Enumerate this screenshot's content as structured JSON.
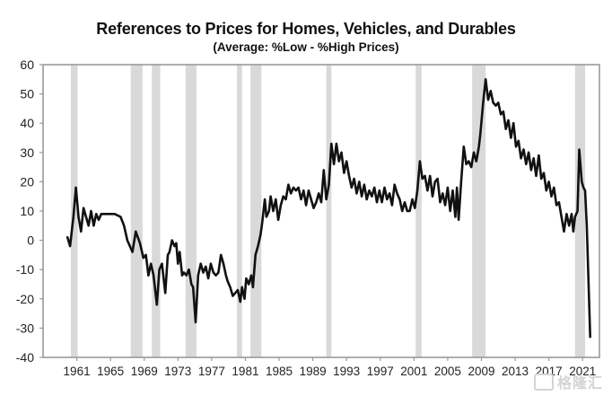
{
  "chart_data": {
    "type": "line",
    "title": "References to Prices for Homes, Vehicles, and Durables",
    "subtitle": "(Average:  %Low - %High Prices)",
    "xlabel": "",
    "ylabel": "",
    "xlim": [
      1957,
      2023
    ],
    "ylim": [
      -40,
      60
    ],
    "yticks": [
      60,
      50,
      40,
      30,
      20,
      10,
      0,
      -10,
      -20,
      -30,
      -40
    ],
    "xticks": [
      1961,
      1965,
      1969,
      1973,
      1977,
      1981,
      1985,
      1989,
      1993,
      1997,
      2001,
      2005,
      2009,
      2013,
      2017,
      2021
    ],
    "grid": false,
    "legend": "none",
    "recession_bands": [
      [
        1960.3,
        1961.1
      ],
      [
        1969.9,
        1970.9
      ],
      [
        1973.9,
        1975.2
      ],
      [
        1980.0,
        1980.6
      ],
      [
        1981.6,
        1982.9
      ],
      [
        1990.6,
        1991.2
      ],
      [
        2001.2,
        2001.9
      ],
      [
        2007.9,
        2009.5
      ],
      [
        2020.1,
        2021.3
      ],
      [
        1967.4,
        1968.8
      ]
    ],
    "series": [
      {
        "name": "%Low - %High Prices",
        "color": "#111111",
        "points": [
          [
            1959.9,
            1
          ],
          [
            1960.2,
            -2
          ],
          [
            1960.6,
            8
          ],
          [
            1960.9,
            18
          ],
          [
            1961.2,
            8
          ],
          [
            1961.5,
            3
          ],
          [
            1961.8,
            11
          ],
          [
            1962.1,
            8
          ],
          [
            1962.4,
            5
          ],
          [
            1962.7,
            10
          ],
          [
            1963.0,
            5
          ],
          [
            1963.3,
            9
          ],
          [
            1963.6,
            7
          ],
          [
            1963.9,
            9
          ],
          [
            1964.5,
            9
          ],
          [
            1965.5,
            9
          ],
          [
            1966.2,
            8
          ],
          [
            1966.6,
            5
          ],
          [
            1967.0,
            0
          ],
          [
            1967.6,
            -4
          ],
          [
            1968.0,
            3
          ],
          [
            1968.5,
            -1
          ],
          [
            1968.9,
            -6
          ],
          [
            1969.2,
            -5
          ],
          [
            1969.5,
            -12
          ],
          [
            1969.8,
            -8
          ],
          [
            1970.1,
            -12
          ],
          [
            1970.5,
            -22
          ],
          [
            1970.8,
            -10
          ],
          [
            1971.1,
            -8
          ],
          [
            1971.5,
            -18
          ],
          [
            1971.8,
            -5
          ],
          [
            1972.0,
            -4
          ],
          [
            1972.3,
            0
          ],
          [
            1972.6,
            -2
          ],
          [
            1972.8,
            -1
          ],
          [
            1973.0,
            -8
          ],
          [
            1973.2,
            -4
          ],
          [
            1973.5,
            -12
          ],
          [
            1973.7,
            -11
          ],
          [
            1974.0,
            -12
          ],
          [
            1974.3,
            -10
          ],
          [
            1974.6,
            -15
          ],
          [
            1974.8,
            -16
          ],
          [
            1975.1,
            -28
          ],
          [
            1975.4,
            -12
          ],
          [
            1975.7,
            -8
          ],
          [
            1976.0,
            -11
          ],
          [
            1976.3,
            -9
          ],
          [
            1976.6,
            -13
          ],
          [
            1976.9,
            -8
          ],
          [
            1977.2,
            -11
          ],
          [
            1977.5,
            -12
          ],
          [
            1977.8,
            -11
          ],
          [
            1978.1,
            -5
          ],
          [
            1978.4,
            -8
          ],
          [
            1978.7,
            -12
          ],
          [
            1978.9,
            -14
          ],
          [
            1979.2,
            -16
          ],
          [
            1979.5,
            -19
          ],
          [
            1979.8,
            -18
          ],
          [
            1980.1,
            -17
          ],
          [
            1980.4,
            -21
          ],
          [
            1980.6,
            -16
          ],
          [
            1980.9,
            -20
          ],
          [
            1981.1,
            -13
          ],
          [
            1981.4,
            -15
          ],
          [
            1981.7,
            -12
          ],
          [
            1981.9,
            -16
          ],
          [
            1982.2,
            -5
          ],
          [
            1982.5,
            -2
          ],
          [
            1982.8,
            2
          ],
          [
            1983.0,
            6
          ],
          [
            1983.3,
            14
          ],
          [
            1983.5,
            8
          ],
          [
            1983.8,
            10
          ],
          [
            1984.0,
            15
          ],
          [
            1984.3,
            10
          ],
          [
            1984.6,
            14
          ],
          [
            1984.9,
            7
          ],
          [
            1985.2,
            12
          ],
          [
            1985.5,
            15
          ],
          [
            1985.8,
            14
          ],
          [
            1986.1,
            19
          ],
          [
            1986.4,
            16
          ],
          [
            1986.7,
            18
          ],
          [
            1987.0,
            17
          ],
          [
            1987.3,
            18
          ],
          [
            1987.6,
            14
          ],
          [
            1987.9,
            17
          ],
          [
            1988.2,
            12
          ],
          [
            1988.5,
            17
          ],
          [
            1988.8,
            14
          ],
          [
            1989.1,
            11
          ],
          [
            1989.4,
            13
          ],
          [
            1989.7,
            16
          ],
          [
            1990.0,
            13
          ],
          [
            1990.3,
            24
          ],
          [
            1990.6,
            14
          ],
          [
            1990.9,
            19
          ],
          [
            1991.2,
            33
          ],
          [
            1991.5,
            26
          ],
          [
            1991.8,
            33
          ],
          [
            1992.1,
            27
          ],
          [
            1992.4,
            30
          ],
          [
            1992.7,
            23
          ],
          [
            1993.0,
            27
          ],
          [
            1993.3,
            22
          ],
          [
            1993.6,
            18
          ],
          [
            1993.9,
            21
          ],
          [
            1994.2,
            16
          ],
          [
            1994.5,
            20
          ],
          [
            1994.8,
            15
          ],
          [
            1995.1,
            19
          ],
          [
            1995.4,
            14
          ],
          [
            1995.7,
            17
          ],
          [
            1996.0,
            15
          ],
          [
            1996.3,
            18
          ],
          [
            1996.6,
            13
          ],
          [
            1996.9,
            17
          ],
          [
            1997.2,
            13
          ],
          [
            1997.5,
            18
          ],
          [
            1997.8,
            14
          ],
          [
            1998.1,
            16
          ],
          [
            1998.4,
            12
          ],
          [
            1998.7,
            19
          ],
          [
            1999.0,
            16
          ],
          [
            1999.3,
            14
          ],
          [
            1999.6,
            10
          ],
          [
            1999.9,
            13
          ],
          [
            2000.2,
            10
          ],
          [
            2000.5,
            10
          ],
          [
            2000.8,
            14
          ],
          [
            2001.1,
            11
          ],
          [
            2001.4,
            17
          ],
          [
            2001.7,
            27
          ],
          [
            2002.0,
            21
          ],
          [
            2002.3,
            22
          ],
          [
            2002.6,
            17
          ],
          [
            2002.9,
            22
          ],
          [
            2003.2,
            15
          ],
          [
            2003.5,
            20
          ],
          [
            2003.8,
            21
          ],
          [
            2004.1,
            13
          ],
          [
            2004.4,
            16
          ],
          [
            2004.7,
            12
          ],
          [
            2005.0,
            18
          ],
          [
            2005.3,
            10
          ],
          [
            2005.6,
            17
          ],
          [
            2005.9,
            8
          ],
          [
            2006.1,
            18
          ],
          [
            2006.3,
            7
          ],
          [
            2006.6,
            20
          ],
          [
            2006.9,
            32
          ],
          [
            2007.2,
            26
          ],
          [
            2007.5,
            27
          ],
          [
            2007.8,
            25
          ],
          [
            2008.1,
            30
          ],
          [
            2008.4,
            27
          ],
          [
            2008.7,
            32
          ],
          [
            2008.9,
            37
          ],
          [
            2009.2,
            47
          ],
          [
            2009.5,
            55
          ],
          [
            2009.8,
            48
          ],
          [
            2010.1,
            51
          ],
          [
            2010.4,
            47
          ],
          [
            2010.7,
            46
          ],
          [
            2011.0,
            47
          ],
          [
            2011.3,
            43
          ],
          [
            2011.6,
            44
          ],
          [
            2011.9,
            38
          ],
          [
            2012.2,
            41
          ],
          [
            2012.5,
            35
          ],
          [
            2012.8,
            40
          ],
          [
            2013.1,
            32
          ],
          [
            2013.4,
            34
          ],
          [
            2013.7,
            28
          ],
          [
            2014.0,
            31
          ],
          [
            2014.3,
            26
          ],
          [
            2014.6,
            30
          ],
          [
            2014.9,
            24
          ],
          [
            2015.2,
            28
          ],
          [
            2015.5,
            22
          ],
          [
            2015.8,
            29
          ],
          [
            2016.1,
            21
          ],
          [
            2016.4,
            23
          ],
          [
            2016.7,
            17
          ],
          [
            2017.0,
            20
          ],
          [
            2017.3,
            15
          ],
          [
            2017.6,
            18
          ],
          [
            2017.9,
            12
          ],
          [
            2018.2,
            13
          ],
          [
            2018.5,
            8
          ],
          [
            2018.8,
            3
          ],
          [
            2019.1,
            9
          ],
          [
            2019.4,
            5
          ],
          [
            2019.7,
            9
          ],
          [
            2019.9,
            3
          ],
          [
            2020.1,
            8
          ],
          [
            2020.4,
            10
          ],
          [
            2020.6,
            31
          ],
          [
            2020.9,
            20
          ],
          [
            2021.1,
            18
          ],
          [
            2021.3,
            17
          ],
          [
            2021.5,
            5
          ],
          [
            2021.9,
            -33
          ]
        ]
      }
    ]
  },
  "watermark": {
    "text": "格隆汇"
  }
}
